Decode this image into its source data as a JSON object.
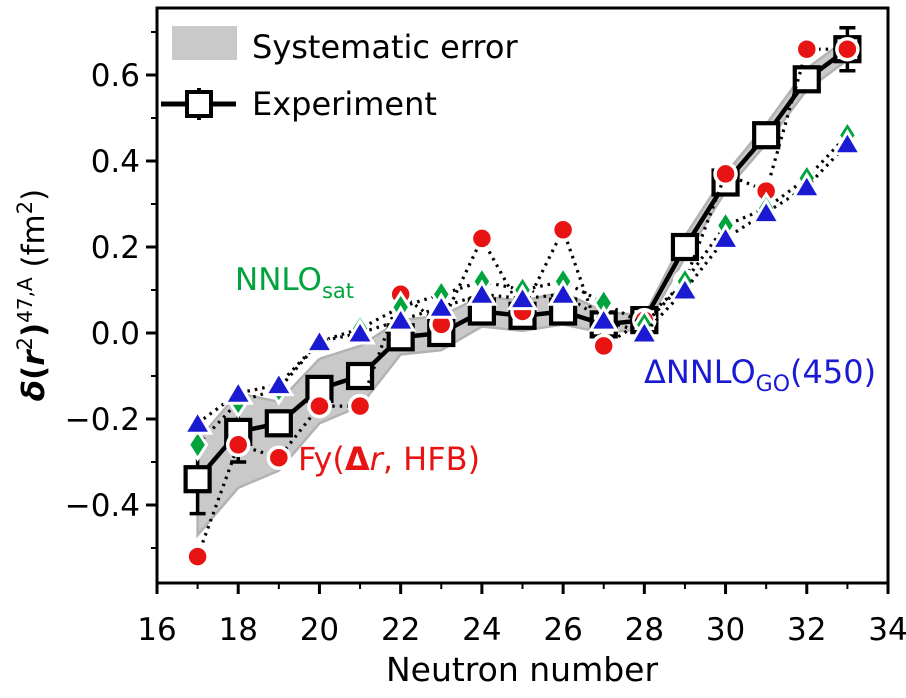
{
  "colors": {
    "experiment": "#000000",
    "fy": "#e81414",
    "nnlo_sat": "#00a33c",
    "dnnlo_go": "#1a1ad2",
    "band_fill": "#c9c9c9",
    "band_edge": "#b2b2b2",
    "background": "#ffffff"
  },
  "legend": {
    "items": [
      {
        "label": "Systematic error",
        "swatch": "gray-band-patch"
      },
      {
        "label": "Experiment",
        "swatch": "line-with-open-square"
      }
    ]
  },
  "axes": {
    "xlabel": "Neutron number",
    "y_label": {
      "delta": "δ",
      "open": "(",
      "r": "r",
      "sup_r": "2",
      "close1": ")",
      "sup_mass": "47,A",
      "unit_open": " (fm",
      "sup_unit": "2",
      "close2": ")"
    },
    "x_tick_labels": [
      "16",
      "18",
      "20",
      "22",
      "24",
      "26",
      "28",
      "30",
      "32",
      "34"
    ],
    "x_tick_values": [
      16,
      18,
      20,
      22,
      24,
      26,
      28,
      30,
      32,
      34
    ],
    "x_minor_ticks": [
      17,
      19,
      21,
      23,
      25,
      27,
      29,
      31,
      33
    ],
    "y_tick_labels": [
      "−0.4",
      "−0.2",
      "0.0",
      "0.2",
      "0.4",
      "0.6"
    ],
    "y_tick_values": [
      -0.4,
      -0.2,
      0.0,
      0.2,
      0.4,
      0.6
    ],
    "y_minor_ticks": [
      -0.5,
      -0.3,
      -0.1,
      0.1,
      0.3,
      0.5,
      0.7
    ]
  },
  "annotations": {
    "nnlo_sat": {
      "main": "NNLO",
      "sub": "sat"
    },
    "fy": {
      "p1": "Fy(",
      "p2": "Δ",
      "p3": "r",
      "p4": ", HFB)"
    },
    "dnnlo_go": {
      "pre": "ΔNNLO",
      "sub": "GO",
      "post": "(450)"
    }
  },
  "chart_data": {
    "type": "line",
    "title": "",
    "xlabel": "Neutron number",
    "ylabel": "δ(r2)47,A (fm2)",
    "xlim": [
      16,
      34
    ],
    "ylim": [
      -0.58,
      0.76
    ],
    "grid": false,
    "legend_position": "upper-left-inside",
    "x": [
      17,
      18,
      19,
      20,
      21,
      22,
      23,
      24,
      25,
      26,
      27,
      28,
      29,
      30,
      31,
      32,
      33
    ],
    "series": [
      {
        "name": "Experiment",
        "marker": "open-square",
        "line": "solid-black",
        "values": [
          -0.34,
          -0.23,
          -0.21,
          -0.13,
          -0.1,
          -0.01,
          0.0,
          0.05,
          0.04,
          0.05,
          0.02,
          0.03,
          0.2,
          0.35,
          0.46,
          0.59,
          0.66
        ],
        "error_bars": [
          {
            "x": 17,
            "e": 0.08
          },
          {
            "x": 18,
            "e": 0.07
          },
          {
            "x": 33,
            "e": 0.05
          }
        ]
      },
      {
        "name": "Fy(Δr, HFB)",
        "marker": "red-circle",
        "line": "dotted-black",
        "values": [
          -0.52,
          -0.26,
          -0.29,
          -0.17,
          -0.17,
          0.09,
          0.02,
          0.22,
          0.05,
          0.24,
          -0.03,
          0.03,
          0.12,
          0.37,
          0.33,
          0.66,
          0.66
        ]
      },
      {
        "name": "NNLOsat",
        "marker": "green-diamond",
        "line": "dotted-black",
        "values": [
          -0.26,
          -0.16,
          -0.13,
          -0.02,
          0.01,
          0.06,
          0.09,
          0.12,
          0.1,
          0.12,
          0.07,
          0.02,
          0.12,
          0.25,
          0.29,
          0.36,
          0.46
        ]
      },
      {
        "name": "ΔNNLOGO(450)",
        "marker": "blue-triangle",
        "line": "dotted-black",
        "values": [
          -0.21,
          -0.14,
          -0.12,
          -0.02,
          0.0,
          0.03,
          0.06,
          0.09,
          0.08,
          0.09,
          0.03,
          0.0,
          0.1,
          0.22,
          0.28,
          0.34,
          0.44
        ]
      }
    ],
    "band": {
      "name": "Systematic error",
      "upper": [
        -0.25,
        -0.14,
        -0.16,
        -0.06,
        -0.03,
        0.03,
        0.04,
        0.085,
        0.075,
        0.095,
        0.05,
        0.04,
        0.225,
        0.37,
        0.485,
        0.615,
        0.685
      ],
      "lower": [
        -0.47,
        -0.36,
        -0.32,
        -0.21,
        -0.17,
        -0.05,
        -0.04,
        0.015,
        0.005,
        0.02,
        0.0,
        0.01,
        0.175,
        0.33,
        0.44,
        0.565,
        0.635
      ]
    }
  }
}
